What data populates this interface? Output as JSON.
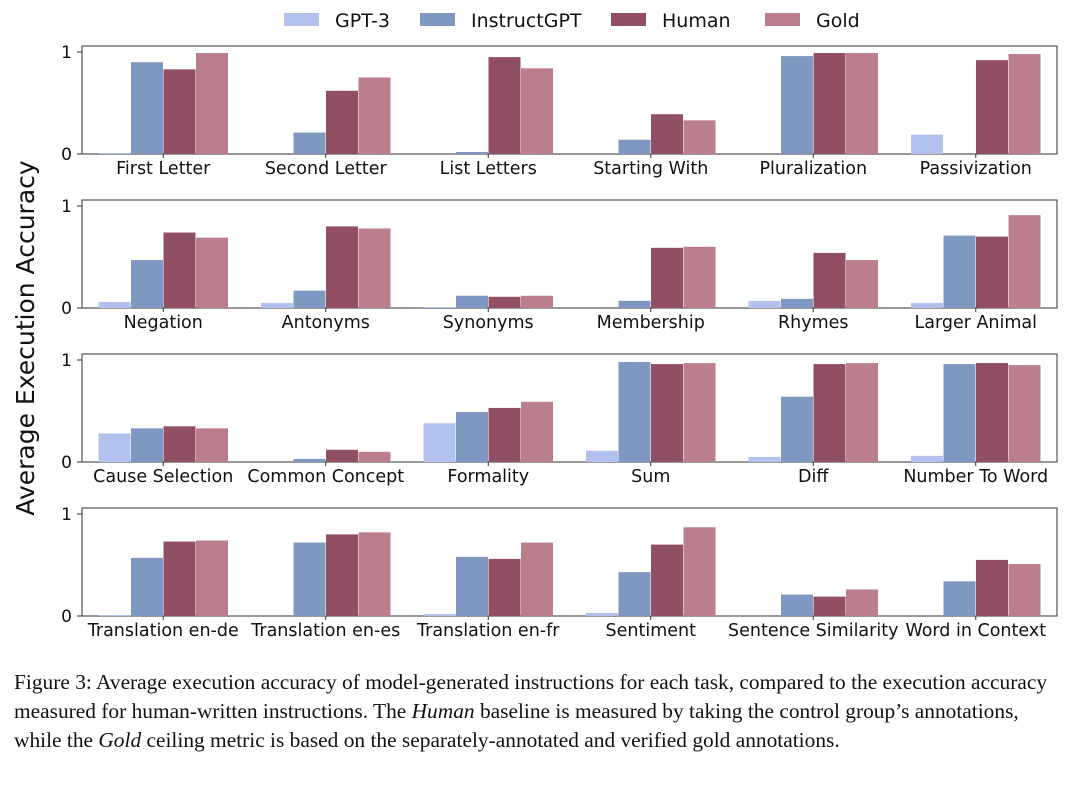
{
  "chart_data": {
    "type": "bar",
    "ylabel": "Average Execution Accuracy",
    "ylim": [
      0,
      1
    ],
    "yticks": [
      "0",
      "1"
    ],
    "legend": {
      "placement": "top-center",
      "entries": [
        {
          "name": "GPT-3",
          "color": "#b2c1ee"
        },
        {
          "name": "InstructGPT",
          "color": "#7f98c2"
        },
        {
          "name": "Human",
          "color": "#914f64"
        },
        {
          "name": "Gold",
          "color": "#ba7e8c"
        }
      ]
    },
    "panels": [
      {
        "categories": [
          "First Letter",
          "Second Letter",
          "List Letters",
          "Starting With",
          "Pluralization",
          "Passivization"
        ],
        "series": [
          {
            "name": "GPT-3",
            "values": [
              0.01,
              0.0,
              0.0,
              0.0,
              0.0,
              0.19
            ]
          },
          {
            "name": "InstructGPT",
            "values": [
              0.9,
              0.21,
              0.02,
              0.14,
              0.96,
              0.0
            ]
          },
          {
            "name": "Human",
            "values": [
              0.83,
              0.62,
              0.95,
              0.39,
              0.99,
              0.92
            ]
          },
          {
            "name": "Gold",
            "values": [
              0.99,
              0.75,
              0.84,
              0.33,
              0.99,
              0.98
            ]
          }
        ]
      },
      {
        "categories": [
          "Negation",
          "Antonyms",
          "Synonyms",
          "Membership",
          "Rhymes",
          "Larger Animal"
        ],
        "series": [
          {
            "name": "GPT-3",
            "values": [
              0.06,
              0.05,
              0.01,
              0.0,
              0.07,
              0.05
            ]
          },
          {
            "name": "InstructGPT",
            "values": [
              0.47,
              0.17,
              0.12,
              0.07,
              0.09,
              0.71
            ]
          },
          {
            "name": "Human",
            "values": [
              0.74,
              0.8,
              0.11,
              0.59,
              0.54,
              0.7
            ]
          },
          {
            "name": "Gold",
            "values": [
              0.69,
              0.78,
              0.12,
              0.6,
              0.47,
              0.91
            ]
          }
        ]
      },
      {
        "categories": [
          "Cause Selection",
          "Common Concept",
          "Formality",
          "Sum",
          "Diff",
          "Number To Word"
        ],
        "series": [
          {
            "name": "GPT-3",
            "values": [
              0.28,
              0.0,
              0.38,
              0.11,
              0.05,
              0.06
            ]
          },
          {
            "name": "InstructGPT",
            "values": [
              0.33,
              0.03,
              0.49,
              0.98,
              0.64,
              0.96
            ]
          },
          {
            "name": "Human",
            "values": [
              0.35,
              0.12,
              0.53,
              0.96,
              0.96,
              0.97
            ]
          },
          {
            "name": "Gold",
            "values": [
              0.33,
              0.1,
              0.59,
              0.97,
              0.97,
              0.95
            ]
          }
        ]
      },
      {
        "categories": [
          "Translation en-de",
          "Translation en-es",
          "Translation en-fr",
          "Sentiment",
          "Sentence Similarity",
          "Word in Context"
        ],
        "series": [
          {
            "name": "GPT-3",
            "values": [
              0.01,
              0.0,
              0.02,
              0.03,
              0.0,
              0.0
            ]
          },
          {
            "name": "InstructGPT",
            "values": [
              0.57,
              0.72,
              0.58,
              0.43,
              0.21,
              0.34
            ]
          },
          {
            "name": "Human",
            "values": [
              0.73,
              0.8,
              0.56,
              0.7,
              0.19,
              0.55
            ]
          },
          {
            "name": "Gold",
            "values": [
              0.74,
              0.82,
              0.72,
              0.87,
              0.26,
              0.51
            ]
          }
        ]
      }
    ]
  },
  "caption": {
    "label": "Figure 3:",
    "part1": " Average execution accuracy of model-generated instructions for each task, compared to the execution accuracy measured for human-written instructions. The ",
    "em1": "Human",
    "part2": " baseline is measured by taking the control group’s annotations, while the ",
    "em2": "Gold",
    "part3": " ceiling metric is based on the separately-annotated and verified gold annotations."
  }
}
